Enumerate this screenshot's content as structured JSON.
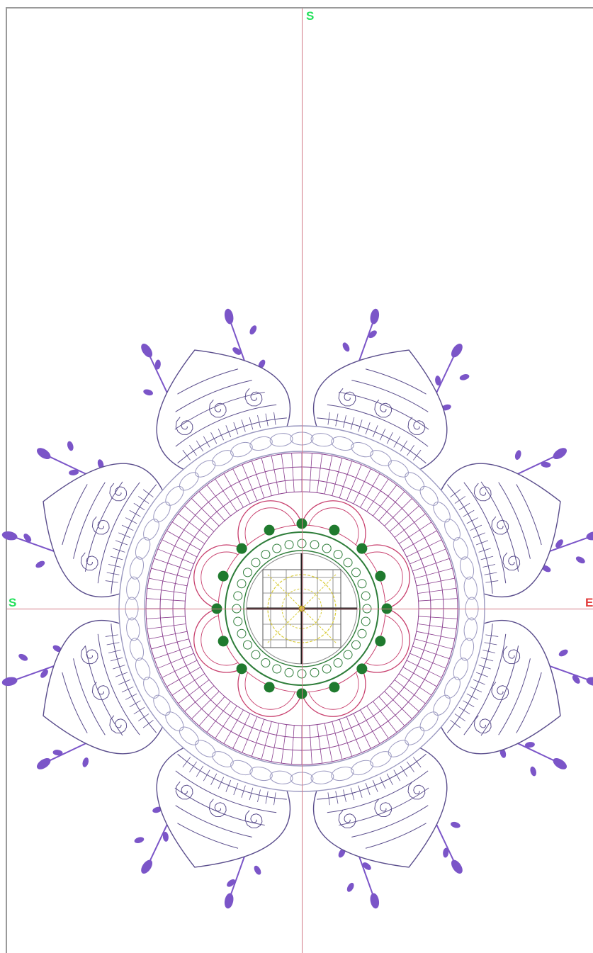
{
  "axes": {
    "top_label": "S",
    "left_label": "S",
    "right_label": "E"
  },
  "colors": {
    "axis_line": "#d27a86",
    "label_green": "#22e05a",
    "label_red": "#e23a3a",
    "petal_outline": "#5a4d8c",
    "vine": "#7b55c8",
    "grid_ring": "#8a3f8f",
    "inner_scallop": "#c8406e",
    "green_ring": "#2e7d3a",
    "green_dot": "#1f7a2e",
    "center_yellow": "#d9cc3a",
    "center_dark": "#1a1a1a",
    "rope_ring": "#9a98c0"
  },
  "icons": {
    "design": "mandala-embroidery-design",
    "center_mark": "crosshair-icon"
  }
}
